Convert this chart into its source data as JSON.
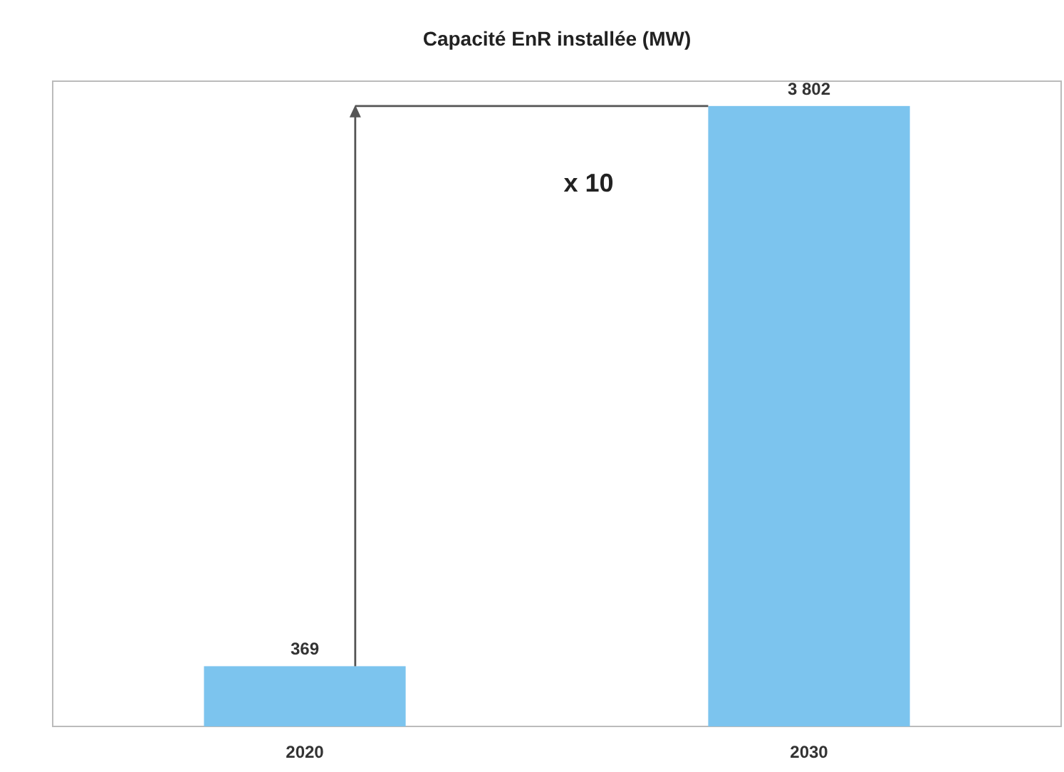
{
  "chart_data": {
    "type": "bar",
    "title": "Capacité EnR installée (MW)",
    "categories": [
      "2020",
      "2030"
    ],
    "values": [
      369,
      3802
    ],
    "color": "#7cc4ee",
    "data_labels": true,
    "annotations": [
      "x 10"
    ]
  }
}
